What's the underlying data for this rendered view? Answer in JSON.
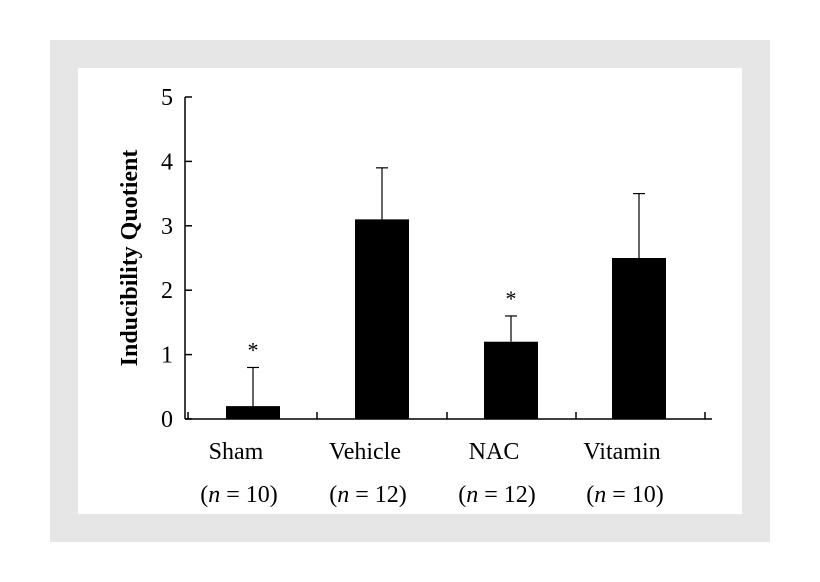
{
  "chart_data": {
    "type": "bar",
    "title": "",
    "xlabel": "",
    "ylabel": "Inducibility Quotient",
    "ylim": [
      0,
      5
    ],
    "yticks": [
      0,
      1,
      2,
      3,
      4,
      5
    ],
    "grid": false,
    "categories": [
      "Sham",
      "Vehicle",
      "NAC",
      "Vitamin"
    ],
    "category_n": [
      "(n = 10)",
      "(n = 12)",
      "(n = 12)",
      "(n = 10)"
    ],
    "values": [
      0.2,
      3.1,
      1.2,
      2.5
    ],
    "error_upper": [
      0.8,
      3.9,
      1.6,
      3.5
    ],
    "significance": [
      "*",
      "",
      "*",
      ""
    ],
    "bar_color": "#000000"
  }
}
